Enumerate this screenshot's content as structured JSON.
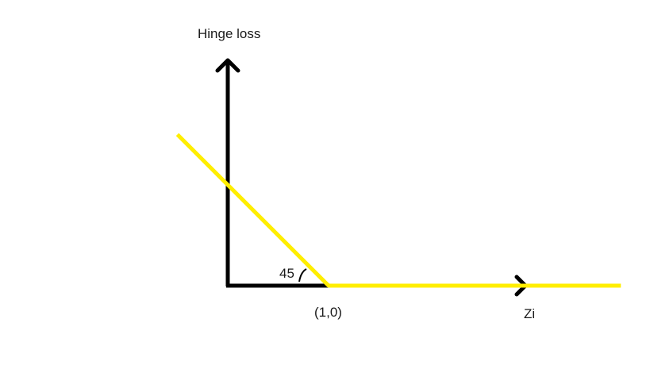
{
  "chart_data": {
    "type": "line",
    "ylabel": "Hinge loss",
    "xlabel": "Zi",
    "series": [
      {
        "x": [
          -0.5,
          1,
          3.9
        ],
        "y": [
          1.5,
          0,
          0
        ]
      }
    ],
    "annotations": {
      "point_label": "(1,0)",
      "point": [
        1,
        0
      ],
      "angle_label": "45"
    },
    "grid": false,
    "colors": {
      "axis": "#000000",
      "curve": "#ffee00"
    }
  }
}
